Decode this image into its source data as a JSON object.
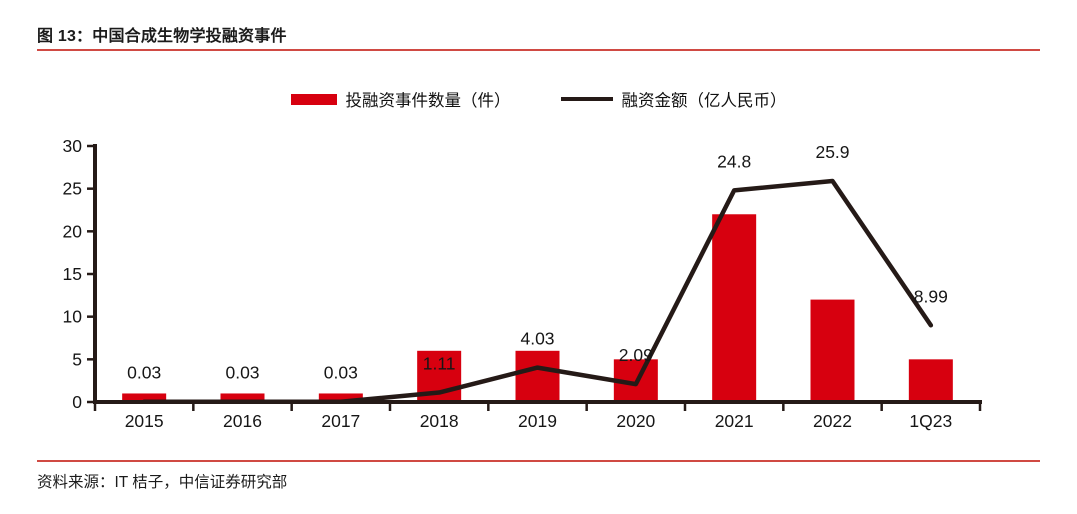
{
  "header": {
    "title": "图 13：中国合成生物学投融资事件"
  },
  "legend": {
    "items": [
      {
        "label": "投融资事件数量（件）",
        "swatch": "bar-swatch"
      },
      {
        "label": "融资金额（亿人民币）",
        "swatch": "line-swatch"
      }
    ]
  },
  "footer": {
    "source": "资料来源：IT 桔子，中信证券研究部"
  },
  "colors": {
    "bar_red": "#d7000f",
    "line_dark": "#251a17",
    "rule_red": "#d04a43",
    "text_dark": "#161616"
  },
  "chart_data": {
    "type": "bar+line combo",
    "categories": [
      "2015",
      "2016",
      "2017",
      "2018",
      "2019",
      "2020",
      "2021",
      "2022",
      "1Q23"
    ],
    "series": [
      {
        "name": "投融资事件数量（件）",
        "type": "bar",
        "color": "#d7000f",
        "values": [
          1,
          1,
          1,
          6,
          6,
          5,
          22,
          12,
          5
        ]
      },
      {
        "name": "融资金额（亿人民币）",
        "type": "line",
        "color": "#251a17",
        "values": [
          0.03,
          0.03,
          0.03,
          1.11,
          4.03,
          2.09,
          24.8,
          25.9,
          8.99
        ],
        "point_labels": [
          "0.03",
          "0.03",
          "0.03",
          "1.11",
          "4.03",
          "2.09",
          "24.8",
          "25.9",
          "8.99"
        ]
      }
    ],
    "title": "中国合成生物学投融资事件",
    "xlabel": "",
    "ylabel": "",
    "ylim": [
      0,
      30
    ],
    "yticks": [
      0,
      5,
      10,
      15,
      20,
      25,
      30
    ],
    "grid": false,
    "legend_position": "top-center"
  }
}
